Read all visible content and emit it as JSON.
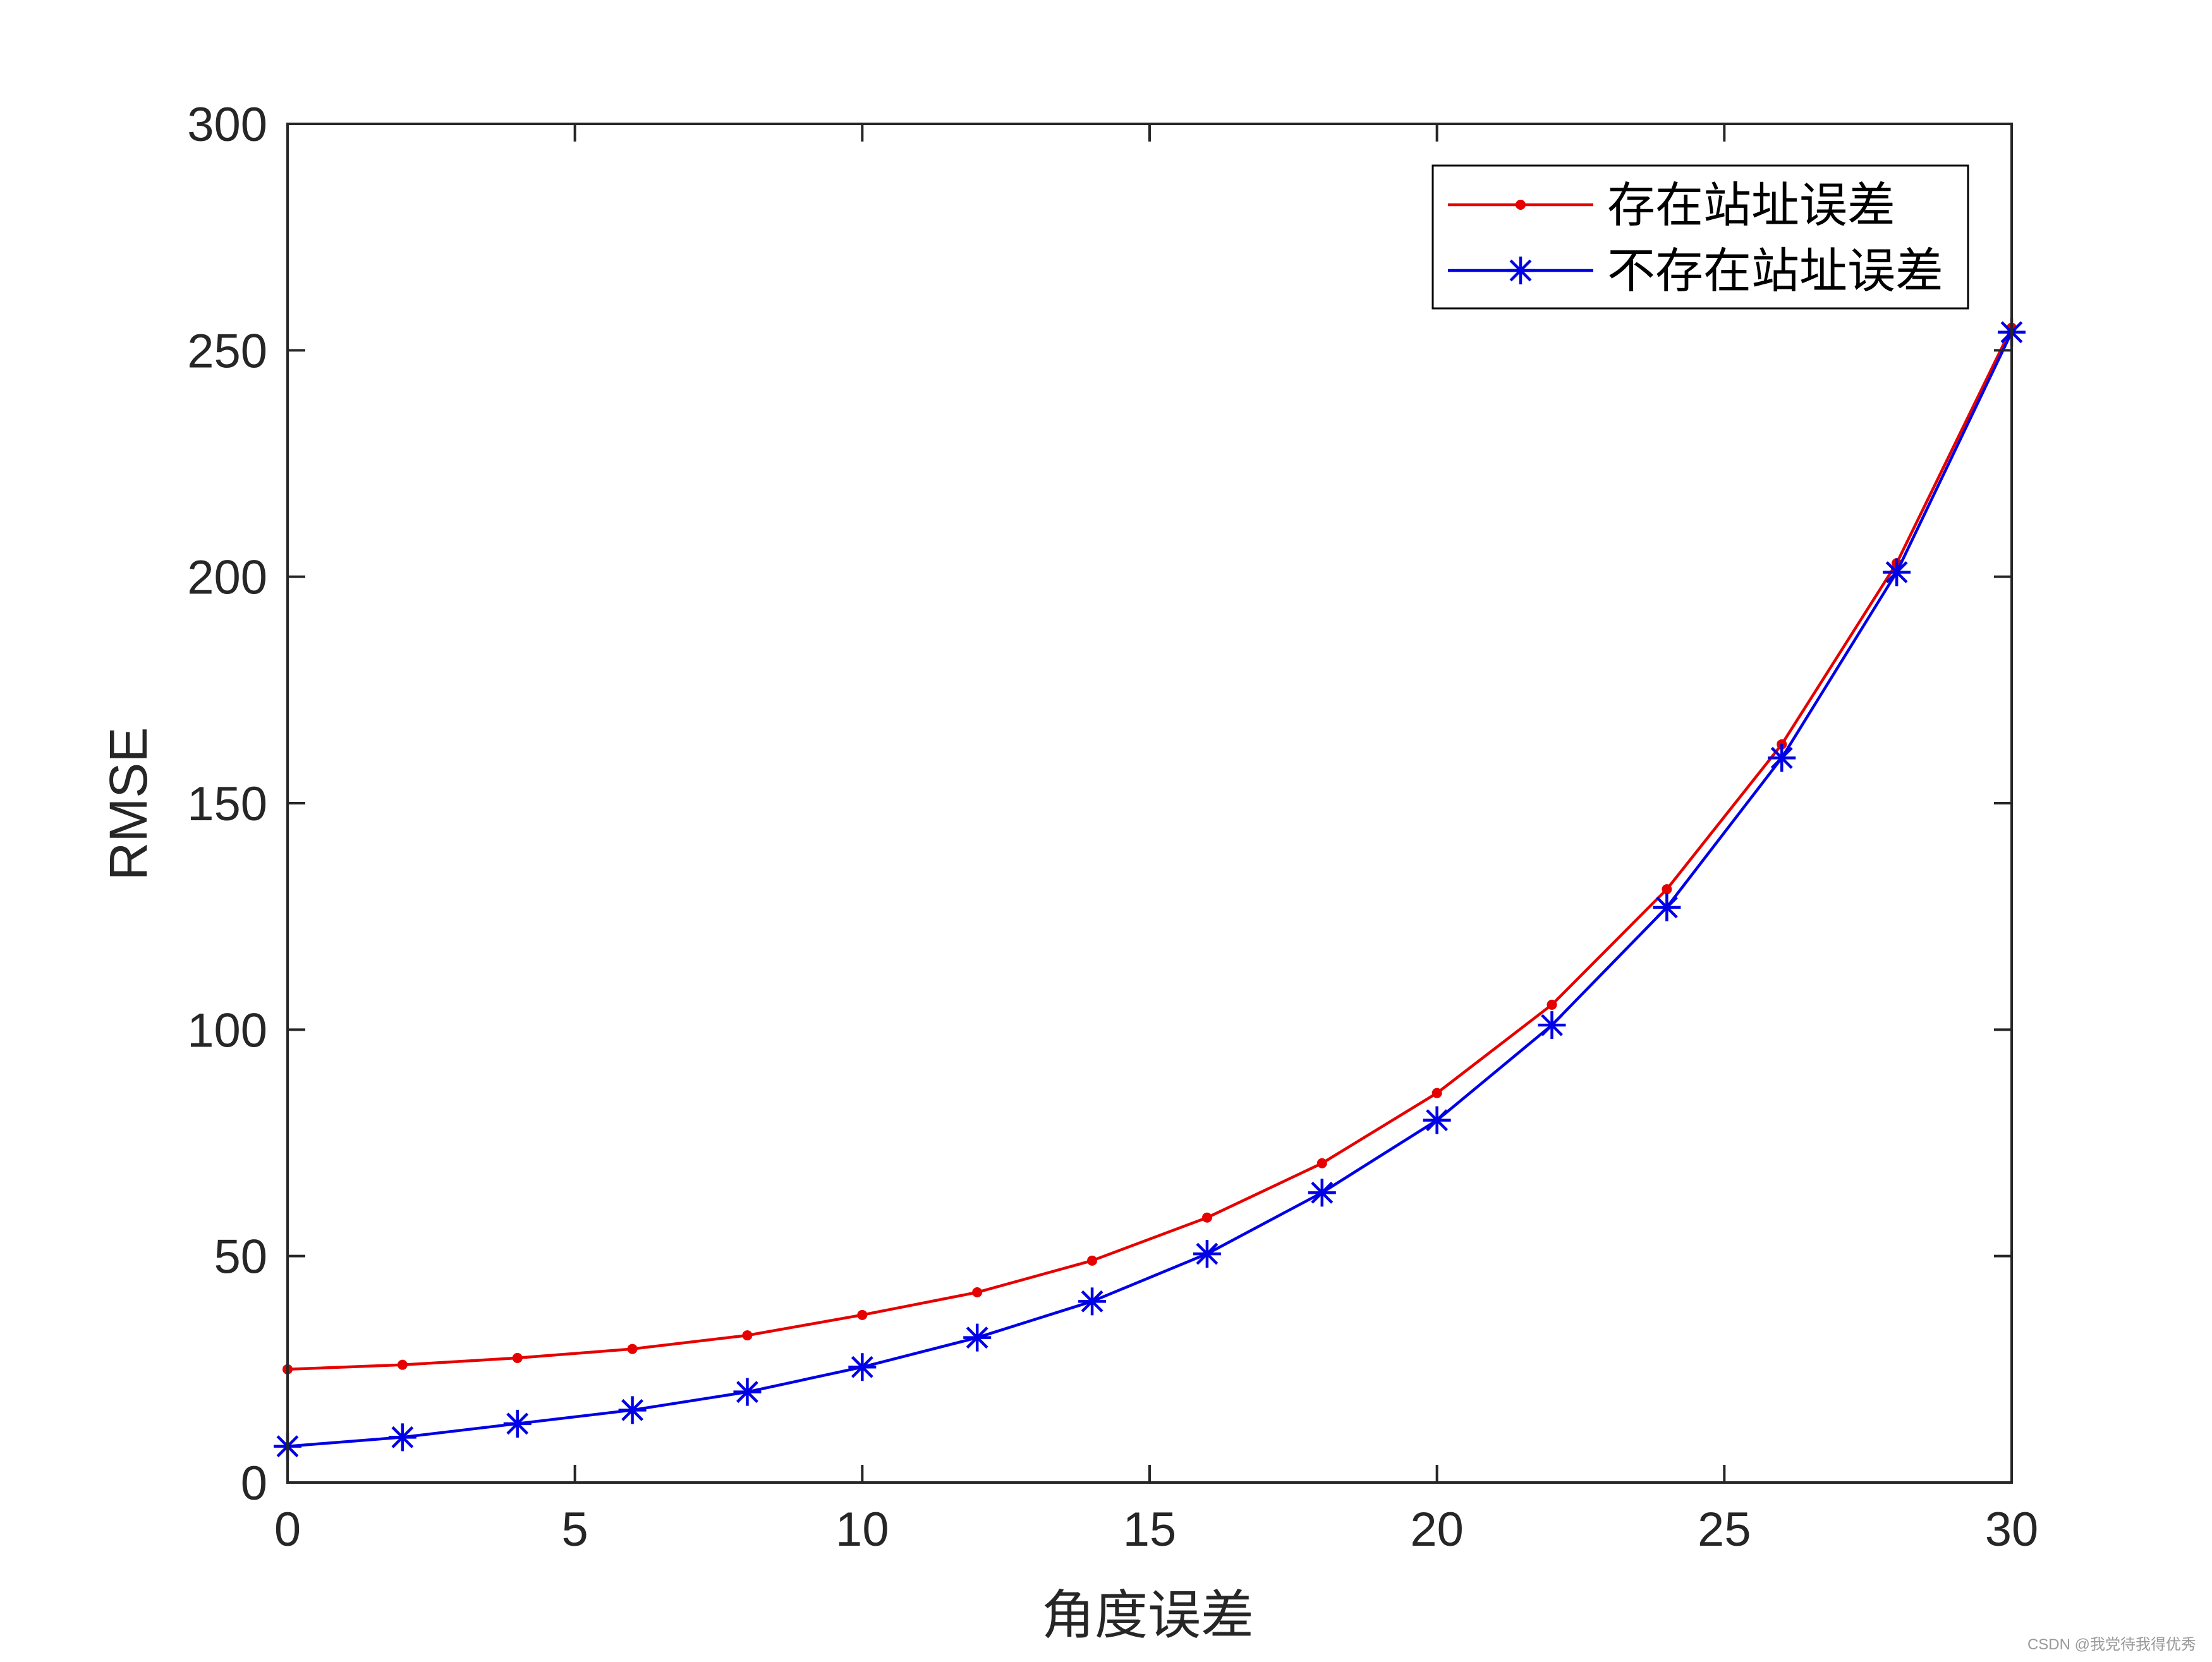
{
  "watermark": "CSDN @我党待我得优秀",
  "colors": {
    "axis": "#262626",
    "series_with_error": "#e60000",
    "series_without_error": "#0000e6",
    "background": "#ffffff"
  },
  "chart_data": {
    "type": "line",
    "title": "",
    "xlabel": "角度误差",
    "ylabel": "RMSE",
    "xlim": [
      0,
      30
    ],
    "ylim": [
      0,
      300
    ],
    "xticks": [
      0,
      5,
      10,
      15,
      20,
      25,
      30
    ],
    "yticks": [
      0,
      50,
      100,
      150,
      200,
      250,
      300
    ],
    "grid": false,
    "legend_position": "top-right",
    "x": [
      0,
      2,
      4,
      6,
      8,
      10,
      12,
      14,
      16,
      18,
      20,
      22,
      24,
      26,
      28,
      30
    ],
    "series": [
      {
        "name": "存在站址误差",
        "color": "#e60000",
        "marker": "dot",
        "values": [
          25,
          26,
          27.5,
          29.5,
          32.5,
          37,
          42,
          49,
          58.5,
          70.5,
          86,
          105.5,
          131,
          163,
          203,
          255
        ]
      },
      {
        "name": "不存在站址误差",
        "color": "#0000e6",
        "marker": "star",
        "values": [
          8,
          10,
          13,
          16,
          20,
          25.5,
          32,
          40,
          50.5,
          64,
          80,
          101,
          127,
          160,
          201,
          254
        ]
      }
    ]
  }
}
